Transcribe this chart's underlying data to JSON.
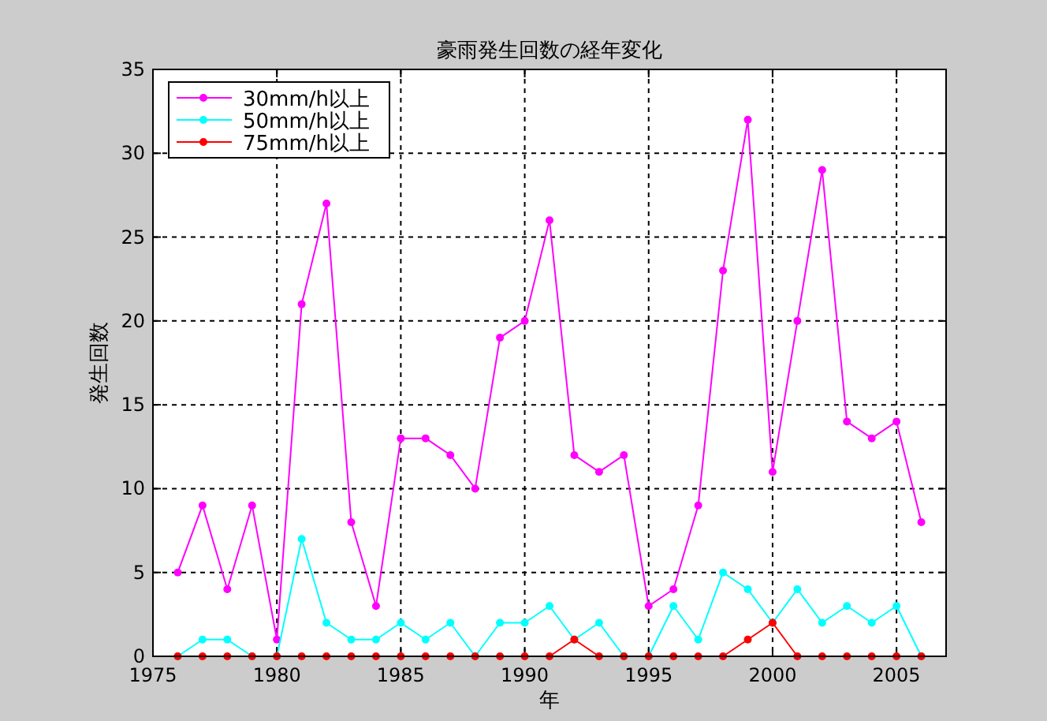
{
  "chart_data": {
    "type": "line",
    "title": "豪雨発生回数の経年変化",
    "xlabel": "年",
    "ylabel": "発生回数",
    "x": [
      1976,
      1977,
      1978,
      1979,
      1980,
      1981,
      1982,
      1983,
      1984,
      1985,
      1986,
      1987,
      1988,
      1989,
      1990,
      1991,
      1992,
      1993,
      1994,
      1995,
      1996,
      1997,
      1998,
      1999,
      2000,
      2001,
      2002,
      2003,
      2004,
      2005,
      2006
    ],
    "series": [
      {
        "name": "30mm/h以上",
        "color": "#ff00ff",
        "values": [
          5,
          9,
          4,
          9,
          1,
          21,
          27,
          8,
          3,
          13,
          13,
          12,
          10,
          19,
          20,
          26,
          12,
          11,
          12,
          3,
          4,
          9,
          23,
          32,
          11,
          20,
          29,
          14,
          13,
          14,
          8
        ]
      },
      {
        "name": "50mm/h以上",
        "color": "#00ffff",
        "values": [
          0,
          1,
          1,
          0,
          0,
          7,
          2,
          1,
          1,
          2,
          1,
          2,
          0,
          2,
          2,
          3,
          1,
          2,
          0,
          0,
          3,
          1,
          5,
          4,
          2,
          4,
          2,
          3,
          2,
          3,
          0
        ]
      },
      {
        "name": "75mm/h以上",
        "color": "#ff0000",
        "values": [
          0,
          0,
          0,
          0,
          0,
          0,
          0,
          0,
          0,
          0,
          0,
          0,
          0,
          0,
          0,
          0,
          1,
          0,
          0,
          0,
          0,
          0,
          0,
          1,
          2,
          0,
          0,
          0,
          0,
          0,
          0
        ]
      }
    ],
    "xlim": [
      1975,
      2007
    ],
    "xticks": [
      1975,
      1980,
      1985,
      1990,
      1995,
      2000,
      2005
    ],
    "ylim": [
      0,
      35
    ],
    "yticks": [
      0,
      5,
      10,
      15,
      20,
      25,
      30,
      35
    ],
    "grid": true,
    "legend": "top left",
    "marker": "circle",
    "line_style": "solid"
  }
}
